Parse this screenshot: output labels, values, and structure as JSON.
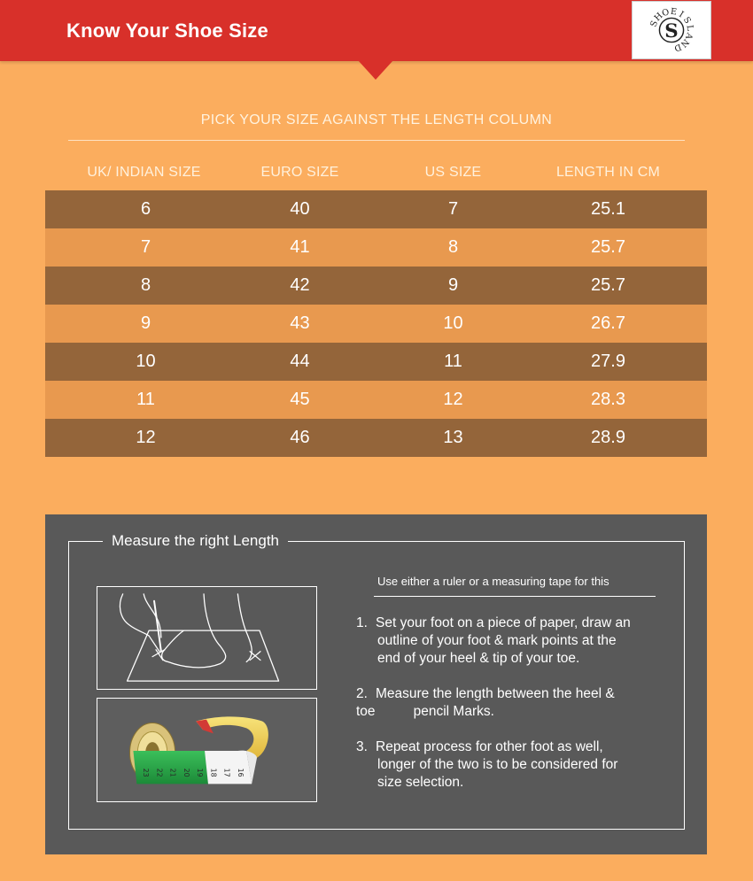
{
  "header": {
    "title": "Know Your Shoe Size",
    "logo": {
      "letters": "SHOEISLAND",
      "center_letter": "S",
      "icon": "shoeisland-logo"
    }
  },
  "subtitle": "PICK YOUR SIZE AGAINST THE LENGTH COLUMN",
  "table": {
    "columns": [
      "UK/ INDIAN SIZE",
      "EURO SIZE",
      "US SIZE",
      "LENGTH IN CM"
    ],
    "rows": [
      [
        "6",
        "40",
        "7",
        "25.1"
      ],
      [
        "7",
        "41",
        "8",
        "25.7"
      ],
      [
        "8",
        "42",
        "9",
        "25.7"
      ],
      [
        "9",
        "43",
        "10",
        "26.7"
      ],
      [
        "10",
        "44",
        "11",
        "27.9"
      ],
      [
        "11",
        "45",
        "12",
        "28.3"
      ],
      [
        "12",
        "46",
        "13",
        "28.9"
      ]
    ]
  },
  "measure": {
    "title": "Measure the right Length",
    "tool_note": "Use either a ruler or a measuring tape for this",
    "steps": [
      {
        "num": "1.",
        "lines": [
          "Set your foot on a piece of paper, draw an",
          "outline of your foot & mark points at the",
          "end of your heel & tip of your toe."
        ]
      },
      {
        "num": "2.",
        "lines": [
          "Measure the length between the heel &",
          "toe          pencil Marks."
        ]
      },
      {
        "num": "3.",
        "lines": [
          "Repeat process for other foot as well,",
          "longer of the two is to be considered for",
          "size selection."
        ]
      }
    ],
    "tape_numbers": [
      "23",
      "22",
      "21",
      "20",
      "19",
      "18",
      "17",
      "16"
    ],
    "images": [
      "foot-outline-illustration",
      "measuring-tape-photo"
    ]
  },
  "colors": {
    "header": "#d8302a",
    "background": "#fbad5e",
    "row_dark": "#94653a",
    "row_light": "#e8994f",
    "panel": "#595959"
  }
}
